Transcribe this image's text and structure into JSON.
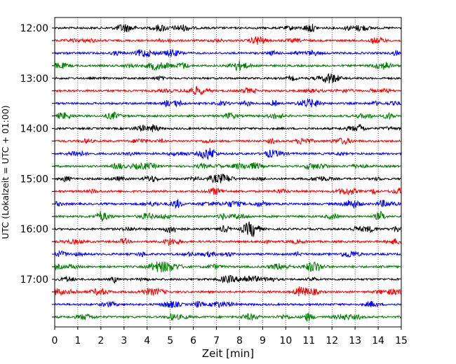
{
  "chart_data": {
    "type": "line",
    "title": "",
    "xlabel": "Zeit  [min]",
    "ylabel": "UTC (Lokalzeit = UTC + 01:00)",
    "xlim": [
      0,
      15
    ],
    "x_ticks": [
      0,
      1,
      2,
      3,
      4,
      5,
      6,
      7,
      8,
      9,
      10,
      11,
      12,
      13,
      14,
      15
    ],
    "x_tick_labels": [
      "0",
      "1",
      "2",
      "3",
      "4",
      "5",
      "6",
      "7",
      "8",
      "9",
      "10",
      "11",
      "12",
      "13",
      "14",
      "15"
    ],
    "y_tick_labels": [
      "12:00",
      "13:00",
      "14:00",
      "15:00",
      "16:00",
      "17:00"
    ],
    "grid_x": true,
    "grid_style": "dotted",
    "trace_colors": [
      "#000000",
      "#ff0000",
      "#0000ff",
      "#007f00"
    ],
    "series": [
      {
        "start": "12:00",
        "color": "#000000"
      },
      {
        "start": "12:15",
        "color": "#ff0000"
      },
      {
        "start": "12:30",
        "color": "#0000ff"
      },
      {
        "start": "12:45",
        "color": "#007f00"
      },
      {
        "start": "13:00",
        "color": "#000000"
      },
      {
        "start": "13:15",
        "color": "#ff0000"
      },
      {
        "start": "13:30",
        "color": "#0000ff"
      },
      {
        "start": "13:45",
        "color": "#007f00"
      },
      {
        "start": "14:00",
        "color": "#000000"
      },
      {
        "start": "14:15",
        "color": "#ff0000"
      },
      {
        "start": "14:30",
        "color": "#0000ff"
      },
      {
        "start": "14:45",
        "color": "#007f00"
      },
      {
        "start": "15:00",
        "color": "#000000"
      },
      {
        "start": "15:15",
        "color": "#ff0000"
      },
      {
        "start": "15:30",
        "color": "#0000ff"
      },
      {
        "start": "15:45",
        "color": "#007f00"
      },
      {
        "start": "16:00",
        "color": "#000000"
      },
      {
        "start": "16:15",
        "color": "#ff0000"
      },
      {
        "start": "16:30",
        "color": "#0000ff"
      },
      {
        "start": "16:45",
        "color": "#007f00"
      },
      {
        "start": "17:00",
        "color": "#000000"
      },
      {
        "start": "17:15",
        "color": "#ff0000"
      },
      {
        "start": "17:30",
        "color": "#0000ff"
      },
      {
        "start": "17:45",
        "color": "#007f00"
      }
    ]
  }
}
